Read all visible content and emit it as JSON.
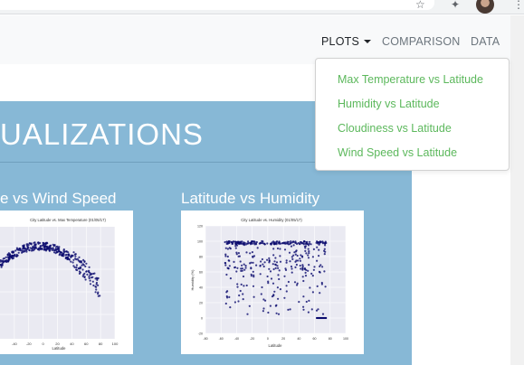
{
  "navbar": {
    "links": [
      {
        "label": "PLOTS",
        "active": true
      },
      {
        "label": "COMPARISON",
        "active": false
      },
      {
        "label": "DATA",
        "active": false
      }
    ]
  },
  "dropdown": {
    "items": [
      "Max Temperature vs Latitude",
      "Humidity vs Latitude",
      "Cloudiness vs Latitude",
      "Wind Speed vs Latitude"
    ]
  },
  "hero": {
    "title": "UALIZATIONS"
  },
  "plots": [
    {
      "title": "e vs Wind Speed",
      "image_caption": "City Latitude vs. Max Temperature (01/05/17)",
      "xlabel": "Latitude"
    },
    {
      "title": "Latitude vs Humidity",
      "image_caption": "City Latitude vs. Humidity (01/05/17)",
      "xlabel": "Latitude",
      "ylabel": "Humidity (%)"
    }
  ],
  "chart_data": [
    {
      "type": "scatter",
      "title": "City Latitude vs. Max Temperature (01/05/17)",
      "xlabel": "Latitude",
      "x_ticks": [
        -40,
        -20,
        0,
        20,
        40,
        60,
        80,
        100
      ],
      "xlim": [
        -60,
        100
      ],
      "color": "#0b0b6e",
      "grid": true
    },
    {
      "type": "scatter",
      "title": "City Latitude vs. Humidity (01/05/17)",
      "xlabel": "Latitude",
      "ylabel": "Humidity (%)",
      "x_ticks": [
        -80,
        -60,
        -40,
        -20,
        0,
        20,
        40,
        60,
        80,
        100
      ],
      "xlim": [
        -80,
        100
      ],
      "y_ticks": [
        -20,
        0,
        20,
        40,
        60,
        80,
        100,
        120
      ],
      "ylim": [
        -20,
        120
      ],
      "color": "#0b0b6e",
      "grid": true
    }
  ],
  "colors": {
    "hero_bg": "#87b8d6",
    "dropdown_item": "#5cb85c",
    "nav_text": "#6c757d"
  }
}
